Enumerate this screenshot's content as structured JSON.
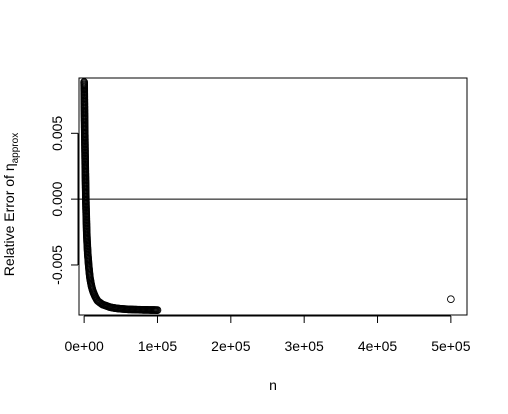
{
  "chart_data": {
    "type": "scatter",
    "title": "",
    "xlabel": "n",
    "ylabel": "Relative Error of η",
    "ylabel_subscript": "approx",
    "xlim": [
      -7000,
      522000
    ],
    "ylim": [
      -0.0088,
      0.0092
    ],
    "x_ticks": [
      0,
      100000,
      200000,
      300000,
      400000,
      500000
    ],
    "x_tick_labels": [
      "0e+00",
      "1e+05",
      "2e+05",
      "3e+05",
      "4e+05",
      "5e+05"
    ],
    "y_ticks": [
      -0.005,
      0.0,
      0.005
    ],
    "y_tick_labels": [
      "-0.005",
      "0.000",
      "0.005"
    ],
    "reference_line_y": 0,
    "grid": false,
    "legend": "none",
    "marker": "open-circle",
    "curve": {
      "description": "relative error rises steeply toward 0.009 at small n and decays toward about -0.0085 as n grows",
      "x": [
        10,
        100,
        300,
        600,
        1000,
        1500,
        2000,
        2500,
        3000,
        3500,
        4000,
        5000,
        6000,
        7000,
        8000,
        10000,
        12000,
        15000,
        18000,
        20000,
        25000,
        30000,
        35000,
        40000,
        45000,
        50000,
        55000,
        60000,
        65000,
        70000,
        75000,
        80000,
        85000,
        90000,
        95000,
        100000
      ],
      "y": [
        0.0089,
        0.0085,
        0.0075,
        0.006,
        0.0045,
        0.0025,
        0.001,
        -0.0005,
        -0.0015,
        -0.0025,
        -0.0032,
        -0.0042,
        -0.0049,
        -0.0055,
        -0.006,
        -0.0066,
        -0.007,
        -0.0074,
        -0.0077,
        -0.0078,
        -0.008,
        -0.0081,
        -0.0082,
        -0.00826,
        -0.0083,
        -0.00833,
        -0.00835,
        -0.00837,
        -0.00838,
        -0.00839,
        -0.0084,
        -0.00841,
        -0.00841,
        -0.00842,
        -0.00842,
        -0.00843
      ]
    },
    "outlier": {
      "x": 500000,
      "y": -0.0076
    }
  }
}
